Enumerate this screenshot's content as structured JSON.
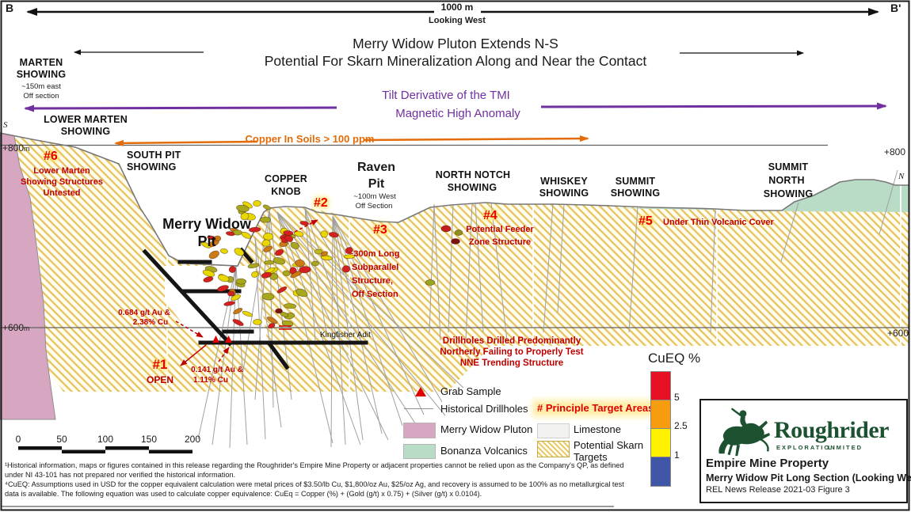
{
  "frame": {
    "left_marker": "B",
    "right_marker": "B'",
    "scale": "1000 m",
    "view": "Looking West",
    "south_marker": "S",
    "north_marker": "N"
  },
  "title": {
    "line1": "Merry Widow Pluton Extends N-S",
    "line2": "Potential For Skarn Mineralization Along and Near the Contact"
  },
  "magnetic_anomaly": {
    "line1": "Tilt Derivative of the TMI",
    "line2": "Magnetic High Anomaly"
  },
  "soil_anomaly": {
    "label": "Copper In Soils > 100 ppm"
  },
  "elevation": {
    "l800": {
      "v": "+800",
      "u": "m"
    },
    "r800": "+800",
    "l600": {
      "v": "+600",
      "u": "m"
    },
    "r600": "+600"
  },
  "showings": {
    "marten": {
      "name1": "MARTEN",
      "name2": "SHOWING",
      "note1": "~150m east",
      "note2": "Off section"
    },
    "lower_marten": {
      "name1": "LOWER MARTEN",
      "name2": "SHOWING"
    },
    "south_pit": {
      "name1": "SOUTH PIT",
      "name2": "SHOWING"
    },
    "copper_knob": {
      "name1": "COPPER",
      "name2": "KNOB"
    },
    "north_notch": {
      "name1": "NORTH NOTCH",
      "name2": "SHOWING"
    },
    "whiskey": {
      "name1": "WHISKEY",
      "name2": "SHOWING"
    },
    "summit": {
      "name1": "SUMMIT",
      "name2": "SHOWING"
    },
    "summit_north": {
      "name1": "SUMMIT",
      "name2": "NORTH",
      "name3": "SHOWING"
    }
  },
  "pits": {
    "merry_widow": {
      "name1": "Merry Widow",
      "name2": "Pit"
    },
    "raven": {
      "name1": "Raven",
      "name2": "Pit",
      "note1": "~100m West",
      "note2": "Off Section"
    }
  },
  "targets": {
    "t1": {
      "id": "#1",
      "note": "OPEN"
    },
    "t2": {
      "id": "#2"
    },
    "t3": {
      "id": "#3",
      "l1": "~300m Long",
      "l2": "Subparallel",
      "l3": "Structure,",
      "l4": "Off Section"
    },
    "t4": {
      "id": "#4",
      "l1": "Potential Feeder",
      "l2": "Zone Structure"
    },
    "t5": {
      "id": "#5",
      "note": "Under Thin Volcanic Cover"
    },
    "t6": {
      "id": "#6",
      "l1": "Lower Marten",
      "l2": "Showing Structures",
      "l3": "Untested"
    }
  },
  "grades": {
    "g1a": "0.684 g/t Au &",
    "g1b": "2.38% Cu",
    "g2a": "0.141 g/t Au &",
    "g2b": "1.11% Cu"
  },
  "adit_label": "Kingfisher Adit",
  "drill_note": {
    "l1": "Drillholes Drilled Predominantly",
    "l2": "Northerly Failing to Properly Test",
    "l3": "NNE Trending Structure"
  },
  "legend": {
    "grab_sample": "Grab Sample",
    "historical_drillholes": "Historical Drillholes",
    "merry_widow_pluton": "Merry Widow Pluton",
    "bonanza_volcanics": "Bonanza Volcanics",
    "principle_targets": "# Principle Target Areas",
    "limestone": "Limestone",
    "skarn1": "Potential Skarn",
    "skarn2": "Targets"
  },
  "cueq": {
    "title": "CuEQ %",
    "tick_5": "5",
    "tick_25": "2.5",
    "tick_1": "1",
    "colors": {
      "red": "#e81123",
      "orange": "#f59d0e",
      "yellow": "#fff100",
      "blue": "#3f57a6"
    }
  },
  "logo": {
    "brand": "Roughrider",
    "tag1": "EXPLORATION",
    "tag2": "LIMITED",
    "property": "Empire Mine Property",
    "figure": "Merry Widow Pit Long Section (Looking West)",
    "release": "REL News Release 2021-03 Figure 3"
  },
  "scalebar": {
    "t0": "0",
    "t1": "50",
    "t2": "100",
    "t3": "150",
    "t4": "200"
  },
  "footnotes": {
    "l1": "¹Historical information, maps or figures contained in this release regarding the Roughrider's Empire Mine Property or adjacent properties cannot be relied upon as the Company's QP, as defined",
    "l2": "under NI 43-101 has not prepared nor verified the historical information.",
    "l3": "⁴CuEQ: Assumptions used in USD for the copper equivalent calculation were metal prices of $3.50/lb Cu, $1,800/oz Au, $25/oz Ag, and recovery is assumed to be 100% as no metallurgical test",
    "l4": "data is available. The following equation was used to calculate copper equivalence: CuEq = Copper (%) + (Gold (g/t) x 0.75) + (Silver (g/t) x 0.0104)."
  },
  "palette": {
    "pluton": "#d7a6c1",
    "volcanics": "#b9dcc6",
    "hatch_line": "#e7c35c",
    "terrain": "#787878",
    "purple": "#7030a0",
    "orange": "#e36c0a",
    "red_annot": "#c00000",
    "workings": "#151515",
    "logo_green": "#1c5230"
  },
  "intercepts": {
    "colors": [
      "#d42020",
      "#cc7a16",
      "#e8d800",
      "#a8a81e"
    ]
  }
}
